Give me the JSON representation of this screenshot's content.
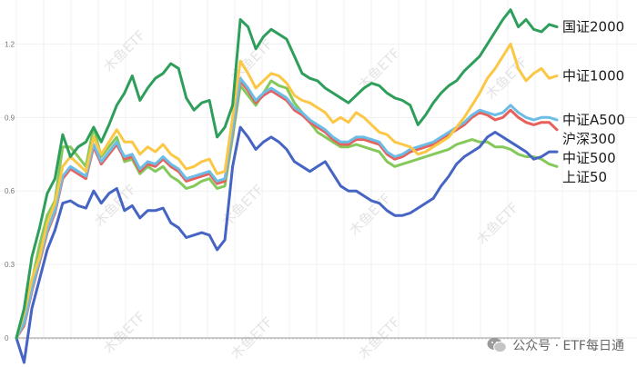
{
  "chart_data": {
    "type": "line",
    "ylim": [
      0,
      1.35
    ],
    "yticks": [
      0,
      0.3,
      0.6,
      0.9,
      1.2
    ],
    "ytick_labels": [
      "0",
      "0.3",
      "0.6",
      "0.9",
      "1.2"
    ],
    "grid": true,
    "legend_placement": "right end labels",
    "series": [
      {
        "name": "国证2000",
        "color": "#2e9e5b",
        "values": [
          0,
          0.12,
          0.33,
          0.45,
          0.59,
          0.65,
          0.83,
          0.74,
          0.78,
          0.8,
          0.86,
          0.8,
          0.87,
          0.95,
          1.0,
          1.07,
          0.97,
          1.02,
          1.06,
          1.08,
          1.12,
          1.1,
          0.98,
          0.93,
          0.96,
          0.97,
          0.82,
          0.86,
          0.95,
          1.3,
          1.27,
          1.18,
          1.23,
          1.26,
          1.24,
          1.22,
          1.15,
          1.08,
          1.06,
          1.05,
          1.02,
          1.0,
          0.98,
          0.96,
          0.99,
          1.02,
          1.04,
          1.03,
          1.0,
          0.98,
          0.97,
          0.95,
          0.87,
          0.91,
          0.96,
          1.0,
          1.03,
          1.05,
          1.09,
          1.12,
          1.15,
          1.2,
          1.25,
          1.3,
          1.34,
          1.27,
          1.3,
          1.26,
          1.25,
          1.28,
          1.27
        ]
      },
      {
        "name": "中证1000",
        "color": "#fbc744",
        "values": [
          0,
          0.1,
          0.24,
          0.33,
          0.47,
          0.55,
          0.7,
          0.74,
          0.71,
          0.68,
          0.82,
          0.75,
          0.8,
          0.85,
          0.8,
          0.8,
          0.75,
          0.78,
          0.76,
          0.79,
          0.75,
          0.73,
          0.69,
          0.7,
          0.72,
          0.73,
          0.67,
          0.68,
          0.9,
          1.13,
          1.08,
          1.02,
          1.05,
          1.08,
          1.07,
          1.04,
          0.99,
          0.97,
          0.96,
          0.94,
          0.92,
          0.88,
          0.9,
          0.88,
          0.92,
          0.9,
          0.87,
          0.84,
          0.83,
          0.8,
          0.79,
          0.78,
          0.75,
          0.76,
          0.78,
          0.8,
          0.82,
          0.86,
          0.9,
          0.95,
          1.0,
          1.06,
          1.1,
          1.15,
          1.2,
          1.1,
          1.05,
          1.08,
          1.1,
          1.06,
          1.07
        ]
      },
      {
        "name": "中证A500",
        "color": "#6cbde6",
        "values": [
          0,
          0.06,
          0.2,
          0.32,
          0.44,
          0.52,
          0.66,
          0.7,
          0.68,
          0.66,
          0.79,
          0.72,
          0.76,
          0.8,
          0.74,
          0.75,
          0.69,
          0.72,
          0.71,
          0.74,
          0.71,
          0.69,
          0.65,
          0.66,
          0.67,
          0.68,
          0.64,
          0.65,
          0.85,
          1.06,
          1.02,
          0.97,
          1.0,
          1.02,
          1.0,
          0.98,
          0.94,
          0.92,
          0.89,
          0.87,
          0.85,
          0.82,
          0.8,
          0.8,
          0.82,
          0.82,
          0.81,
          0.8,
          0.76,
          0.74,
          0.75,
          0.77,
          0.78,
          0.79,
          0.8,
          0.82,
          0.84,
          0.86,
          0.88,
          0.91,
          0.93,
          0.92,
          0.91,
          0.92,
          0.95,
          0.92,
          0.9,
          0.89,
          0.9,
          0.9,
          0.89
        ]
      },
      {
        "name": "沪深300",
        "color": "#e8605c",
        "values": [
          0,
          0.05,
          0.19,
          0.31,
          0.43,
          0.51,
          0.65,
          0.69,
          0.67,
          0.65,
          0.78,
          0.71,
          0.75,
          0.79,
          0.73,
          0.74,
          0.68,
          0.71,
          0.7,
          0.73,
          0.7,
          0.68,
          0.64,
          0.65,
          0.66,
          0.67,
          0.63,
          0.64,
          0.84,
          1.05,
          1.01,
          0.96,
          0.99,
          1.01,
          0.99,
          0.97,
          0.93,
          0.91,
          0.88,
          0.86,
          0.84,
          0.81,
          0.79,
          0.79,
          0.81,
          0.81,
          0.8,
          0.79,
          0.75,
          0.73,
          0.74,
          0.76,
          0.77,
          0.78,
          0.79,
          0.81,
          0.83,
          0.85,
          0.87,
          0.9,
          0.92,
          0.91,
          0.89,
          0.9,
          0.93,
          0.9,
          0.88,
          0.87,
          0.88,
          0.88,
          0.85
        ]
      },
      {
        "name": "中证500",
        "color": "#4564c3",
        "values": [
          0,
          -0.1,
          0.12,
          0.24,
          0.36,
          0.44,
          0.55,
          0.56,
          0.54,
          0.53,
          0.6,
          0.55,
          0.59,
          0.61,
          0.52,
          0.54,
          0.49,
          0.52,
          0.52,
          0.53,
          0.47,
          0.45,
          0.41,
          0.42,
          0.43,
          0.42,
          0.36,
          0.4,
          0.7,
          0.86,
          0.82,
          0.77,
          0.8,
          0.82,
          0.8,
          0.77,
          0.72,
          0.7,
          0.68,
          0.7,
          0.72,
          0.67,
          0.62,
          0.6,
          0.6,
          0.58,
          0.56,
          0.55,
          0.52,
          0.5,
          0.5,
          0.51,
          0.53,
          0.55,
          0.57,
          0.62,
          0.66,
          0.71,
          0.74,
          0.76,
          0.78,
          0.82,
          0.84,
          0.82,
          0.8,
          0.78,
          0.76,
          0.73,
          0.74,
          0.76,
          0.76
        ]
      },
      {
        "name": "上证50",
        "color": "#84c95a",
        "values": [
          0,
          0.08,
          0.23,
          0.38,
          0.5,
          0.56,
          0.78,
          0.78,
          0.74,
          0.7,
          0.86,
          0.74,
          0.78,
          0.82,
          0.72,
          0.73,
          0.67,
          0.7,
          0.68,
          0.7,
          0.66,
          0.64,
          0.61,
          0.62,
          0.64,
          0.65,
          0.61,
          0.62,
          0.82,
          1.03,
          0.99,
          0.95,
          1.0,
          1.05,
          1.03,
          1.02,
          0.96,
          0.92,
          0.88,
          0.84,
          0.82,
          0.8,
          0.78,
          0.78,
          0.79,
          0.78,
          0.77,
          0.76,
          0.72,
          0.7,
          0.71,
          0.72,
          0.73,
          0.74,
          0.75,
          0.76,
          0.77,
          0.79,
          0.8,
          0.81,
          0.8,
          0.8,
          0.78,
          0.78,
          0.77,
          0.75,
          0.74,
          0.74,
          0.73,
          0.71,
          0.7
        ]
      }
    ]
  },
  "watermark": "木鱼ETF",
  "footer": {
    "icon": "wechat-icon",
    "text": "公众号 · ETF每日通"
  }
}
